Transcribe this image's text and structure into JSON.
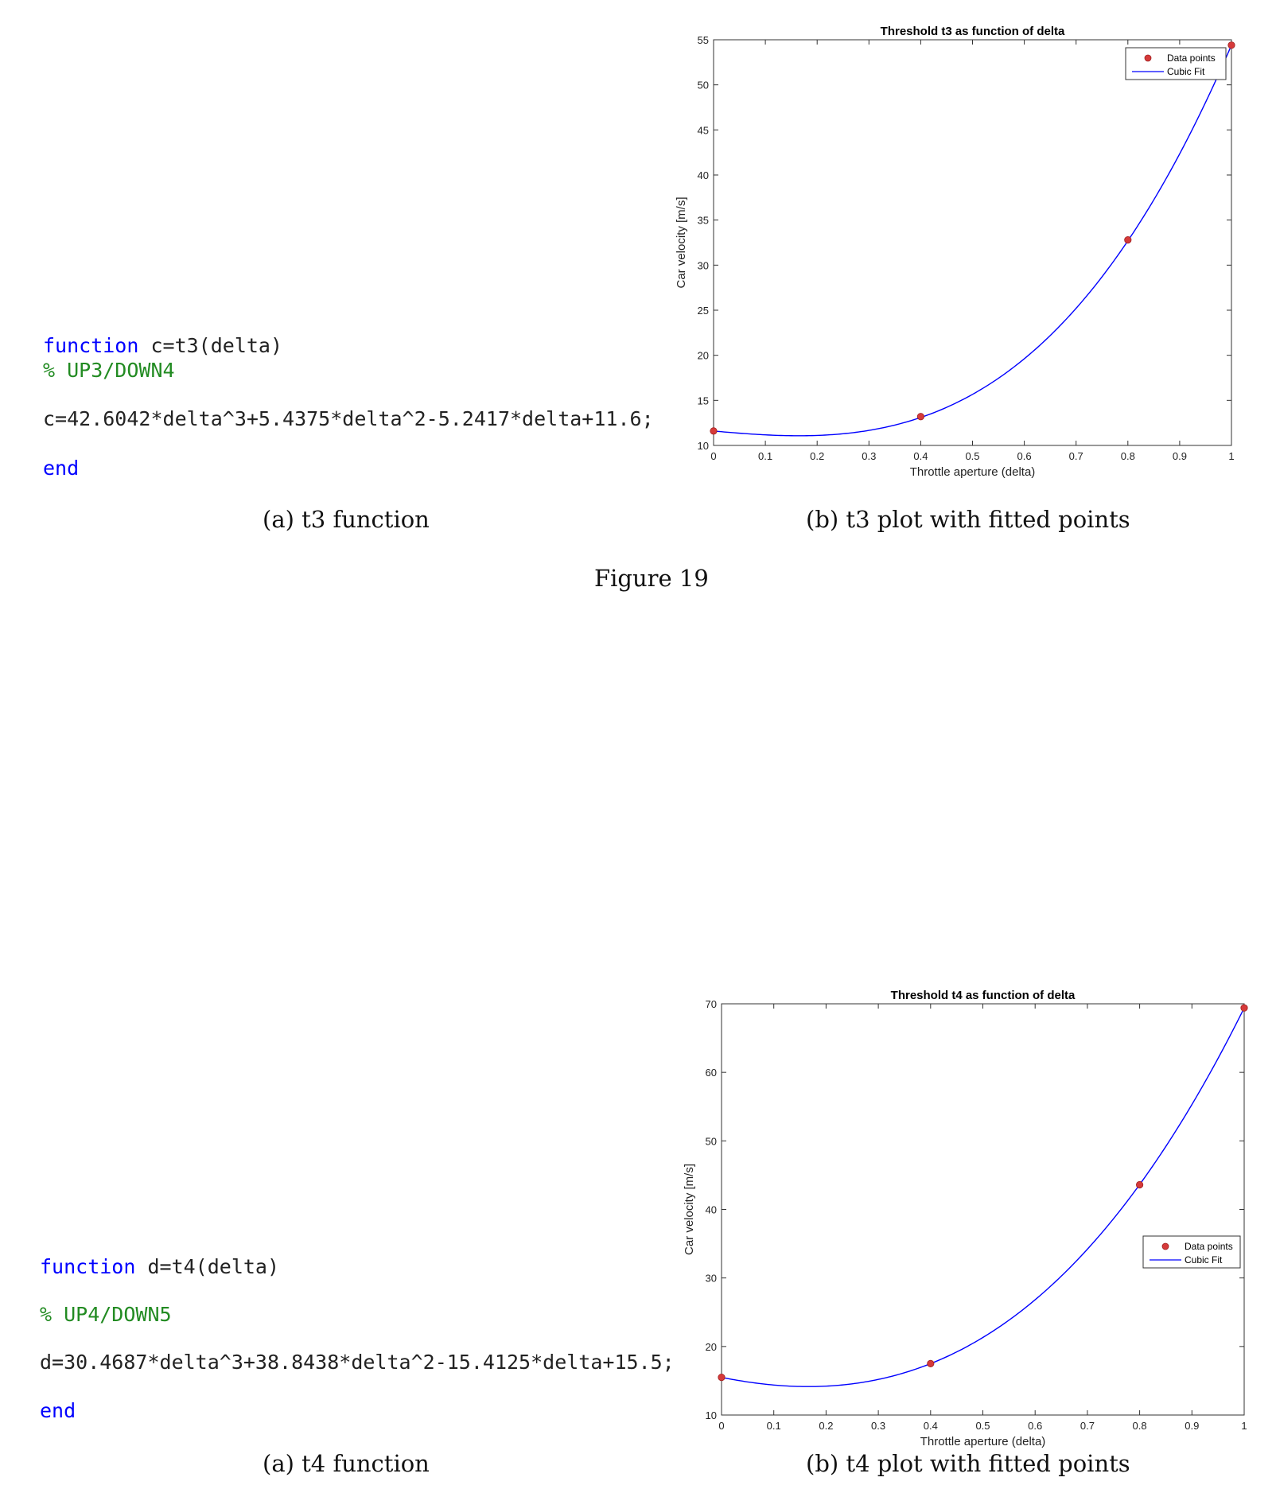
{
  "figure19": {
    "code": {
      "line1_keyword": "function",
      "line1_rest": " c=t3(delta)",
      "line2_comment": "% UP3/DOWN4",
      "line3": "c=42.6042*delta^3+5.4375*delta^2-5.2417*delta+11.6;",
      "line4_keyword": "end"
    },
    "caption_a": "(a) t3 function",
    "caption_b": "(b) t3 plot with fitted points",
    "figure_label": "Figure 19"
  },
  "figure20": {
    "code": {
      "line1_keyword": "function",
      "line1_rest": " d=t4(delta)",
      "line2_comment": "% UP4/DOWN5",
      "line3": "d=30.4687*delta^3+38.8438*delta^2-15.4125*delta+15.5;",
      "line4_keyword": "end"
    },
    "caption_a": "(a) t4 function",
    "caption_b": "(b) t4 plot with fitted points"
  },
  "chart_data": [
    {
      "type": "scatter",
      "title": "Threshold t3 as function of delta",
      "xlabel": "Throttle aperture (delta)",
      "ylabel": "Car velocity [m/s]",
      "xlim": [
        0,
        1
      ],
      "ylim": [
        10,
        55
      ],
      "xticks": [
        "0",
        "0.1",
        "0.2",
        "0.3",
        "0.4",
        "0.5",
        "0.6",
        "0.7",
        "0.8",
        "0.9",
        "1"
      ],
      "yticks": [
        "10",
        "15",
        "20",
        "25",
        "30",
        "35",
        "40",
        "45",
        "50",
        "55"
      ],
      "legend_position": "top-right",
      "series": [
        {
          "name": "Data points",
          "kind": "points",
          "color": "#d63a3a",
          "x": [
            0,
            0.4,
            0.8,
            1
          ],
          "y": [
            11.6,
            13.2,
            32.8,
            54.4
          ]
        },
        {
          "name": "Cubic Fit",
          "kind": "line",
          "color": "#0000ff",
          "coefficients": [
            42.6042,
            5.4375,
            -5.2417,
            11.6
          ]
        }
      ]
    },
    {
      "type": "scatter",
      "title": "Threshold t4 as function of delta",
      "xlabel": "Throttle aperture (delta)",
      "ylabel": "Car velocity [m/s]",
      "xlim": [
        0,
        1
      ],
      "ylim": [
        10,
        70
      ],
      "xticks": [
        "0",
        "0.1",
        "0.2",
        "0.3",
        "0.4",
        "0.5",
        "0.6",
        "0.7",
        "0.8",
        "0.9",
        "1"
      ],
      "yticks": [
        "10",
        "20",
        "30",
        "40",
        "50",
        "60",
        "70"
      ],
      "legend_position": "right",
      "series": [
        {
          "name": "Data points",
          "kind": "points",
          "color": "#d63a3a",
          "x": [
            0,
            0.4,
            0.8,
            1
          ],
          "y": [
            15.5,
            17.5,
            43.6,
            69.4
          ]
        },
        {
          "name": "Cubic Fit",
          "kind": "line",
          "color": "#0000ff",
          "coefficients": [
            30.4687,
            38.8438,
            -15.4125,
            15.5
          ]
        }
      ]
    }
  ]
}
